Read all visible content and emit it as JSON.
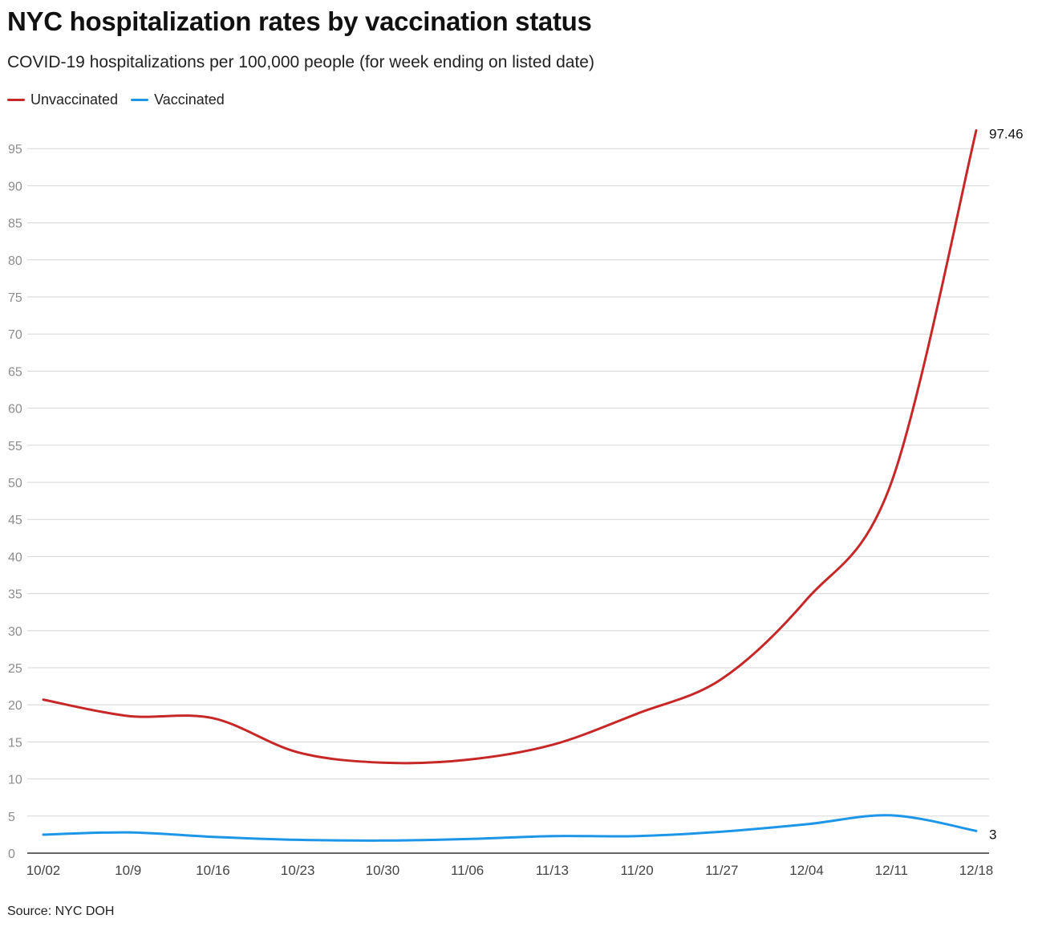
{
  "header": {
    "title": "NYC hospitalization rates by vaccination status",
    "subtitle": "COVID-19 hospitalizations per 100,000 people (for week ending on listed date)"
  },
  "footer": {
    "source": "Source: NYC DOH"
  },
  "chart_data": {
    "type": "line",
    "title": "NYC hospitalization rates by vaccination status",
    "subtitle": "COVID-19 hospitalizations per 100,000 people (for week ending on listed date)",
    "xlabel": "",
    "ylabel": "",
    "categories": [
      "10/02",
      "10/9",
      "10/16",
      "10/23",
      "10/30",
      "11/06",
      "11/13",
      "11/20",
      "11/27",
      "12/04",
      "12/11",
      "12/18"
    ],
    "ylim": [
      0,
      100
    ],
    "yticks": [
      0,
      5,
      10,
      15,
      20,
      25,
      30,
      35,
      40,
      45,
      50,
      55,
      60,
      65,
      70,
      75,
      80,
      85,
      90,
      95
    ],
    "grid": true,
    "legend_position": "top-left",
    "series": [
      {
        "name": "Unvaccinated",
        "color": "#c62828",
        "values": [
          20.7,
          18.5,
          18.2,
          13.6,
          12.2,
          12.6,
          14.6,
          18.8,
          23.5,
          34.2,
          50.0,
          97.46
        ],
        "end_label": "97.46"
      },
      {
        "name": "Vaccinated",
        "color": "#1e96e8",
        "values": [
          2.5,
          2.8,
          2.2,
          1.8,
          1.7,
          1.9,
          2.3,
          2.3,
          2.9,
          3.9,
          5.1,
          3
        ],
        "end_label": "3"
      }
    ],
    "colors": {
      "grid": "#d5d5d5",
      "axis": "#333333",
      "tick_label": "#8c8c8c",
      "x_label": "#444444"
    }
  }
}
